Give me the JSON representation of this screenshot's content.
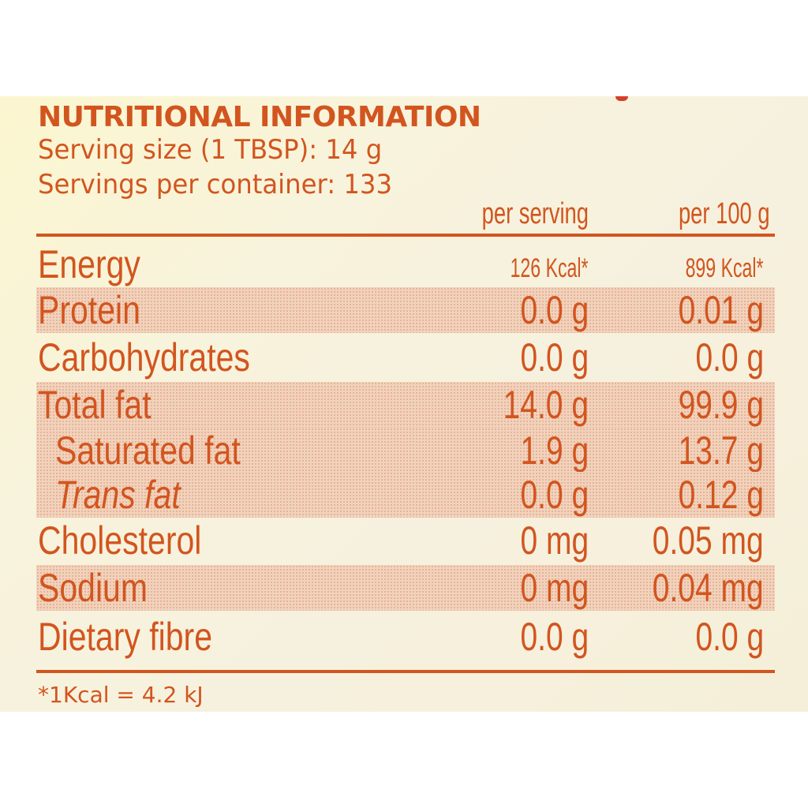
{
  "label": {
    "title": "NUTRITIONAL INFORMATION",
    "serving_size": "Serving size (1 TBSP): 14 g",
    "servings_per_container": "Servings per container: 133",
    "columns": {
      "per_serving": "per serving",
      "per_100g": "per 100 g"
    },
    "rows": [
      {
        "name": "Energy",
        "per_serving": "126 Kcal*",
        "per_100g": "899 Kcal*"
      },
      {
        "name": "Protein",
        "per_serving": "0.0 g",
        "per_100g": "0.01 g"
      },
      {
        "name": "Carbohydrates",
        "per_serving": "0.0 g",
        "per_100g": "0.0 g"
      },
      {
        "name": "Total fat",
        "per_serving": "14.0 g",
        "per_100g": "99.9 g"
      },
      {
        "name": "Saturated fat",
        "per_serving": "1.9 g",
        "per_100g": "13.7 g"
      },
      {
        "name": "Trans fat",
        "per_serving": "0.0 g",
        "per_100g": "0.12 g"
      },
      {
        "name": "Cholesterol",
        "per_serving": "0 mg",
        "per_100g": "0.05 mg"
      },
      {
        "name": "Sodium",
        "per_serving": "0 mg",
        "per_100g": "0.04 mg"
      },
      {
        "name": "Dietary fibre",
        "per_serving": "0.0 g",
        "per_100g": "0.0 g"
      }
    ],
    "footnote": "*1Kcal = 4.2 kJ"
  },
  "colors": {
    "ink": "#d2551f",
    "paper": "#f8f3dc",
    "shade": "#f1d3bd"
  }
}
